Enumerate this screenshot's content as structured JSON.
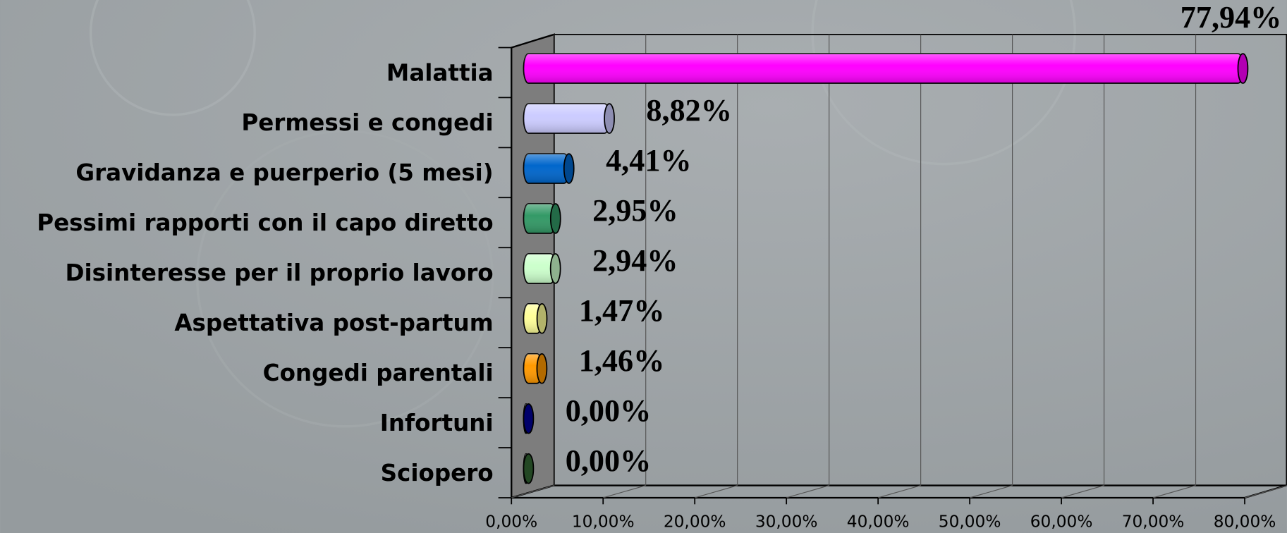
{
  "chart_data": {
    "type": "bar3d_horizontal",
    "categories": [
      "Malattia",
      "Permessi e congedi",
      "Gravidanza e puerperio (5 mesi)",
      "Pessimi rapporti con il capo diretto",
      "Disinteresse per il proprio lavoro",
      "Aspettativa post-partum",
      "Congedi parentali",
      "Infortuni",
      "Sciopero"
    ],
    "values": [
      77.94,
      8.82,
      4.41,
      2.95,
      2.94,
      1.47,
      1.46,
      0.0,
      0.0
    ],
    "value_labels": [
      "77,94%",
      "8,82%",
      "4,41%",
      "2,95%",
      "2,94%",
      "1,47%",
      "1,46%",
      "0,00%",
      "0,00%"
    ],
    "colors": [
      "#ff00ff",
      "#ccccff",
      "#0066cc",
      "#339966",
      "#ccffcc",
      "#ffff99",
      "#ff9900",
      "#000099",
      "#336633"
    ],
    "xlim": [
      0,
      80
    ],
    "xticks": [
      {
        "value": 0,
        "label": "0,00%"
      },
      {
        "value": 10,
        "label": "10,00%"
      },
      {
        "value": 20,
        "label": "20,00%"
      },
      {
        "value": 30,
        "label": "30,00%"
      },
      {
        "value": 40,
        "label": "40,00%"
      },
      {
        "value": 50,
        "label": "50,00%"
      },
      {
        "value": 60,
        "label": "60,00%"
      },
      {
        "value": 70,
        "label": "70,00%"
      },
      {
        "value": 80,
        "label": "80,00%"
      }
    ],
    "grid": true
  }
}
